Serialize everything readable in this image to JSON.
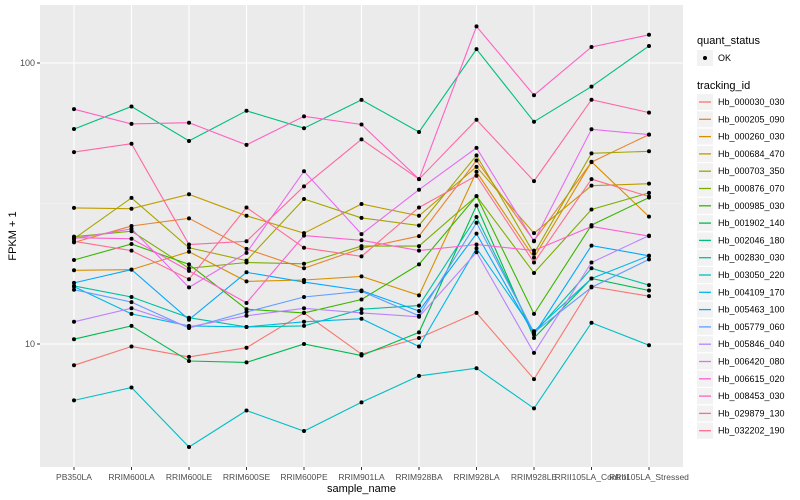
{
  "chart_data": {
    "type": "line",
    "title": "",
    "xlabel": "sample_name",
    "ylabel": "FPKM + 1",
    "yscale": "log10",
    "ylim": [
      3.35,
      160
    ],
    "yticks": [
      10,
      100
    ],
    "ytick_labels": [
      "10",
      "100"
    ],
    "grid": true,
    "categories": [
      "PB350LA",
      "RRIM600LA",
      "RRIM600LE",
      "RRIM600SE",
      "RRIM600PE",
      "RRIM901LA",
      "RRIM928BA",
      "RRIM928LA",
      "RRIM928LE",
      "RRII105LA_Control",
      "RRII105LA_Stressed"
    ],
    "legend_shape": {
      "title": "quant_status",
      "entries": [
        {
          "label": "OK",
          "color": "#000000"
        }
      ]
    },
    "legend_color": {
      "title": "tracking_id",
      "placement": "right"
    },
    "series": [
      {
        "name": "Hb_000030_030",
        "color": "#F8766D",
        "values": [
          8.4,
          9.8,
          9.0,
          9.7,
          12.9,
          9.2,
          10.5,
          12.9,
          7.5,
          16.0,
          14.8
        ]
      },
      {
        "name": "Hb_000205_090",
        "color": "#EA8331",
        "values": [
          23.0,
          26.3,
          28.0,
          21.8,
          18.6,
          21.9,
          24.2,
          45.0,
          23.3,
          44.4,
          55.6
        ]
      },
      {
        "name": "Hb_000260_030",
        "color": "#D89000",
        "values": [
          18.3,
          18.4,
          21.3,
          16.7,
          16.9,
          17.4,
          14.9,
          41.0,
          20.3,
          44.5,
          28.4
        ]
      },
      {
        "name": "Hb_000684_470",
        "color": "#C09B00",
        "values": [
          30.5,
          30.3,
          34.1,
          28.6,
          24.8,
          31.5,
          28.6,
          42.7,
          24.8,
          36.6,
          37.2
        ]
      },
      {
        "name": "Hb_000703_350",
        "color": "#A3A500",
        "values": [
          23.7,
          33.1,
          22.0,
          19.8,
          32.8,
          28.1,
          26.4,
          46.9,
          21.0,
          47.7,
          48.5
        ]
      },
      {
        "name": "Hb_000876_070",
        "color": "#7CAE00",
        "values": [
          24.1,
          25.2,
          18.6,
          19.5,
          19.3,
          22.3,
          22.3,
          33.6,
          17.9,
          30.1,
          34.5
        ]
      },
      {
        "name": "Hb_000985_030",
        "color": "#39B600",
        "values": [
          19.9,
          22.7,
          19.2,
          13.3,
          12.9,
          14.4,
          19.2,
          33.6,
          12.8,
          26.5,
          33.2
        ]
      },
      {
        "name": "Hb_001902_140",
        "color": "#00BB4E",
        "values": [
          10.4,
          11.6,
          8.7,
          8.6,
          10.0,
          9.1,
          11.0,
          31.1,
          10.5,
          17.1,
          15.5
        ]
      },
      {
        "name": "Hb_002046_180",
        "color": "#00BF7D",
        "values": [
          58.2,
          70.0,
          52.8,
          67.6,
          58.6,
          73.9,
          56.8,
          112.0,
          61.8,
          82.4,
          115.0
        ]
      },
      {
        "name": "Hb_002830_030",
        "color": "#00C1A3",
        "values": [
          16.1,
          14.7,
          12.4,
          11.5,
          11.6,
          13.3,
          13.7,
          28.3,
          10.9,
          18.6,
          16.2
        ]
      },
      {
        "name": "Hb_003050_220",
        "color": "#00BFC4",
        "values": [
          6.3,
          7.0,
          4.3,
          5.8,
          4.9,
          6.2,
          7.7,
          8.2,
          5.9,
          11.9,
          9.9
        ]
      },
      {
        "name": "Hb_004109_170",
        "color": "#00B8E7",
        "values": [
          16.0,
          12.8,
          11.6,
          11.5,
          12.0,
          12.3,
          9.8,
          21.9,
          11.1,
          17.1,
          20.6
        ]
      },
      {
        "name": "Hb_005463_100",
        "color": "#00A9FF",
        "values": [
          16.5,
          18.4,
          12.2,
          18.0,
          16.6,
          15.5,
          13.1,
          24.7,
          10.8,
          22.4,
          20.6
        ]
      },
      {
        "name": "Hb_005779_060",
        "color": "#619CFF",
        "values": [
          15.6,
          14.1,
          11.4,
          13.0,
          14.7,
          15.4,
          12.6,
          27.0,
          11.0,
          15.9,
          20.0
        ]
      },
      {
        "name": "Hb_005846_040",
        "color": "#B983FF",
        "values": [
          12.0,
          13.4,
          11.5,
          12.6,
          13.4,
          12.9,
          12.5,
          21.2,
          9.3,
          19.5,
          24.3
        ]
      },
      {
        "name": "Hb_006420_080",
        "color": "#E76BF3",
        "values": [
          23.7,
          25.7,
          15.9,
          21.1,
          41.2,
          24.6,
          35.4,
          49.9,
          23.2,
          58.1,
          55.6
        ]
      },
      {
        "name": "Hb_006615_020",
        "color": "#FD61D1",
        "values": [
          23.9,
          23.7,
          18.2,
          14.0,
          24.3,
          23.4,
          21.5,
          22.6,
          21.5,
          26.2,
          24.2
        ]
      },
      {
        "name": "Hb_008453_030",
        "color": "#FF61C3",
        "values": [
          68.5,
          60.7,
          61.3,
          51.1,
          64.6,
          60.4,
          38.6,
          135.0,
          76.8,
          114.0,
          126.0
        ]
      },
      {
        "name": "Hb_029879_130",
        "color": "#FF67A4",
        "values": [
          48.2,
          51.6,
          22.6,
          23.2,
          36.4,
          53.5,
          38.6,
          62.8,
          38.0,
          74.0,
          66.6
        ]
      },
      {
        "name": "Hb_032202_190",
        "color": "#FF6C91",
        "values": [
          23.2,
          21.5,
          17.0,
          30.6,
          22.0,
          20.5,
          30.6,
          39.7,
          19.5,
          38.6,
          33.5
        ]
      }
    ]
  }
}
